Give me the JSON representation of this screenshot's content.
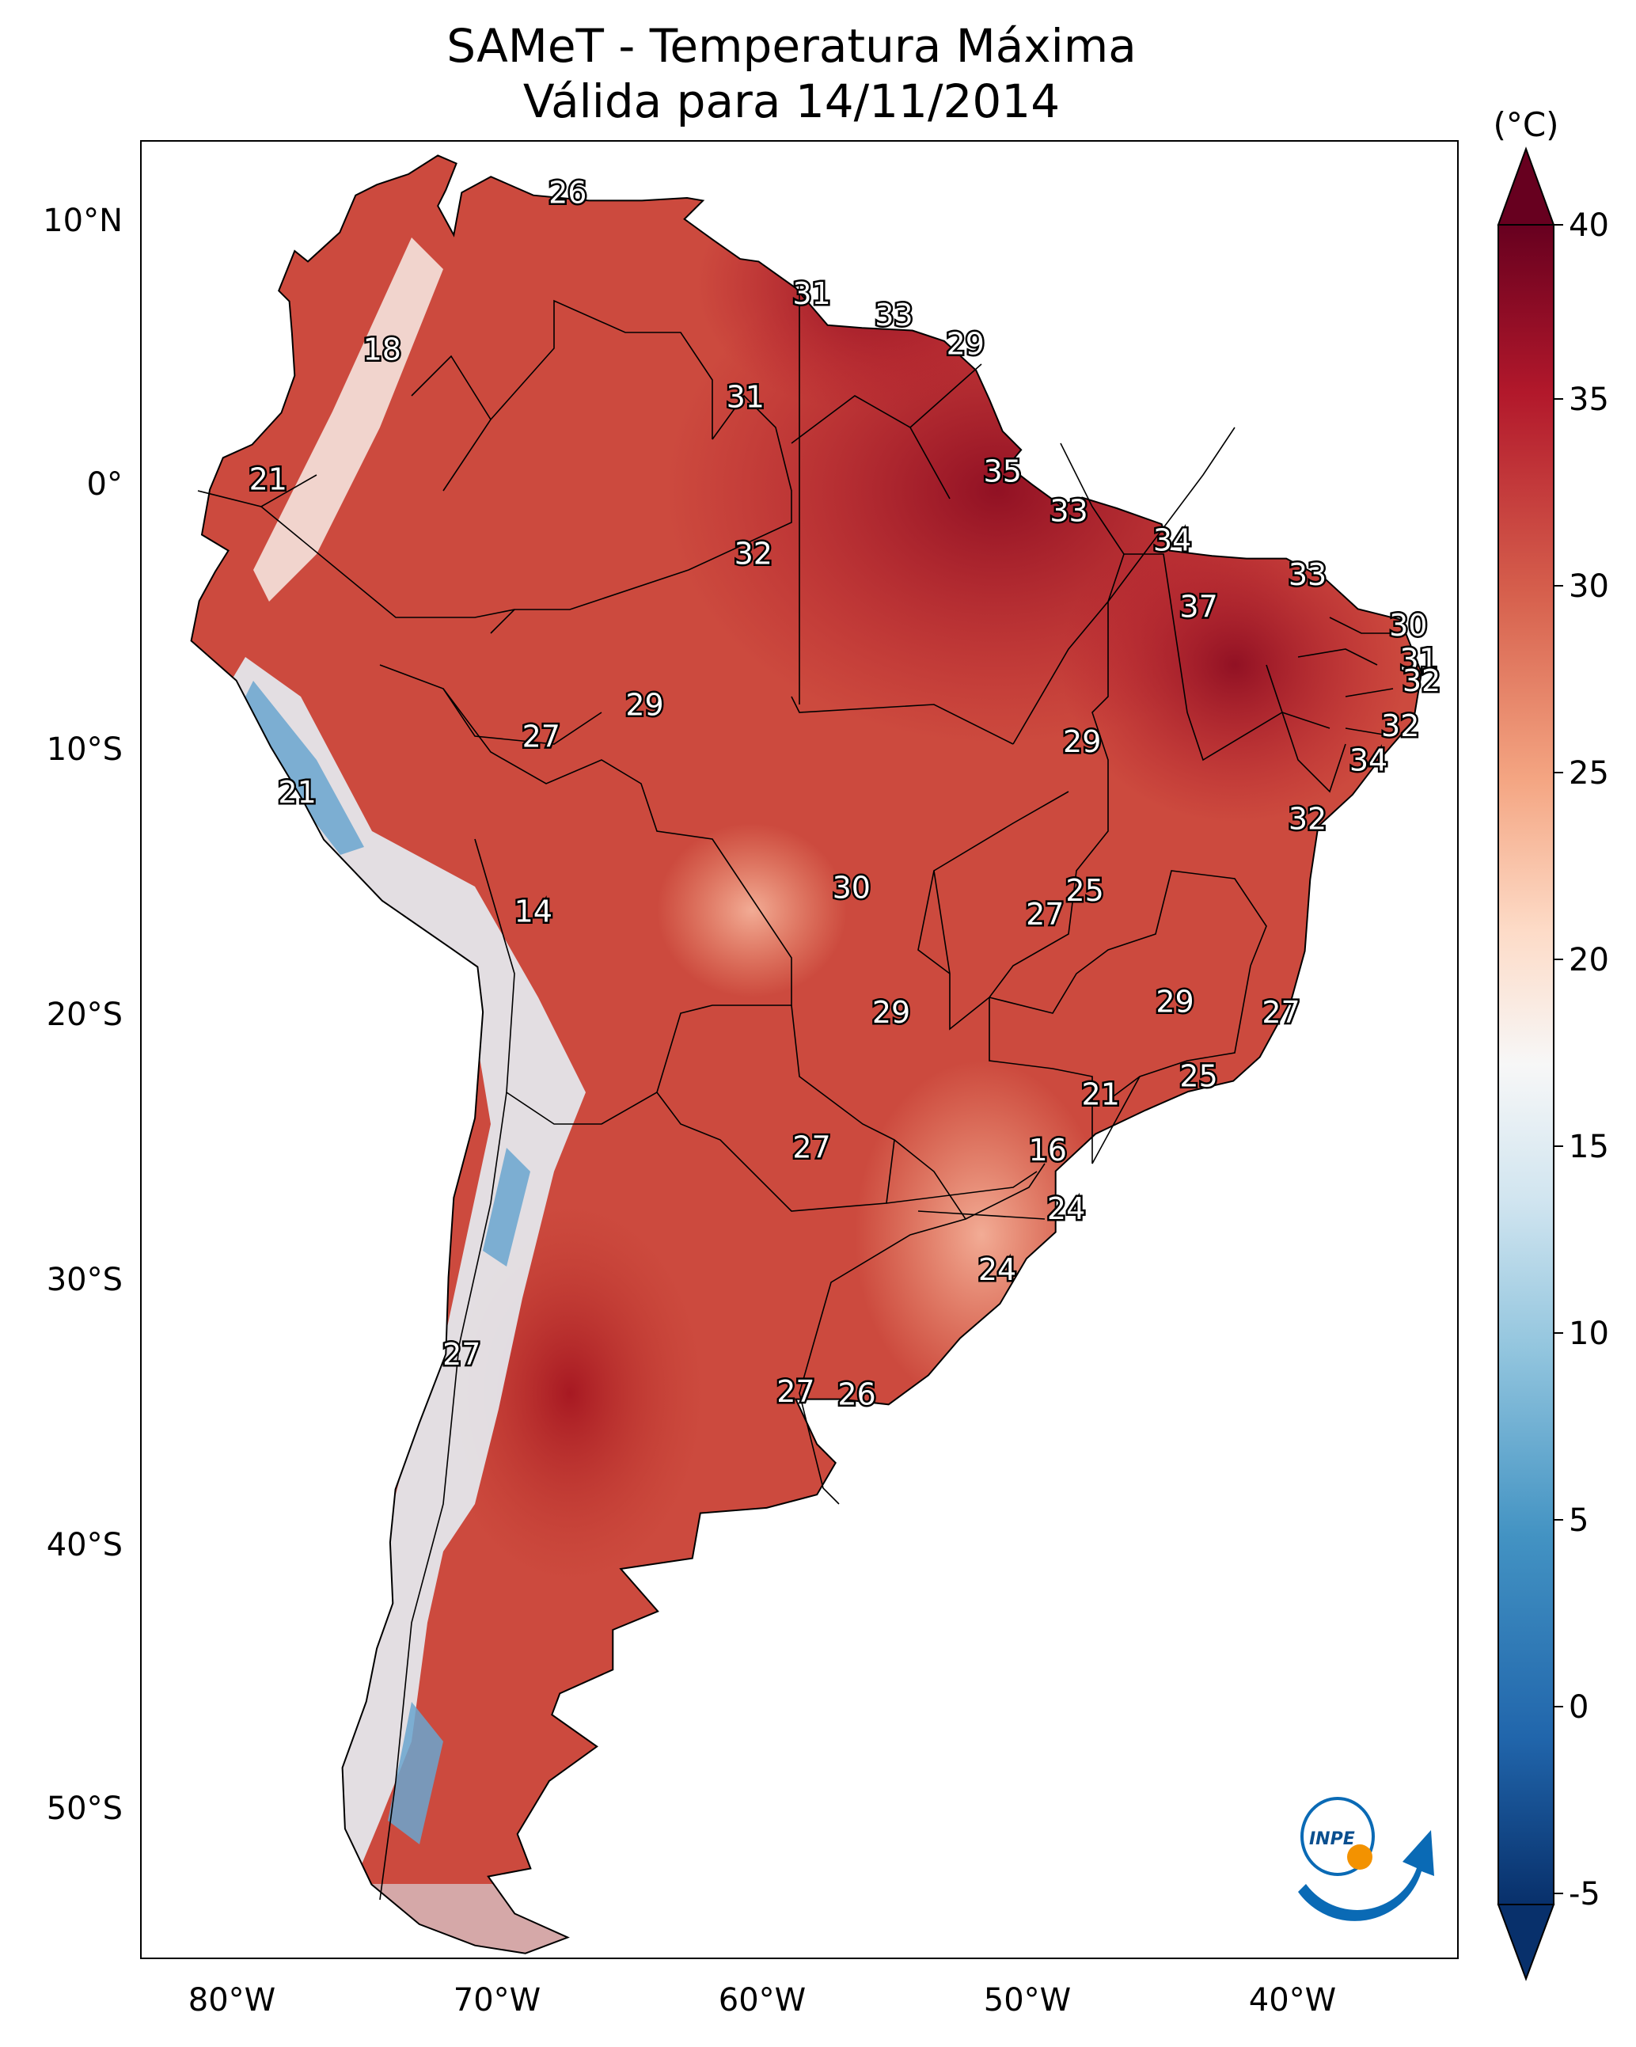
{
  "title": "SAMeT - Temperatura Máxima",
  "subtitle": "Válida para 14/11/2014",
  "colorbar": {
    "unit": "(°C)",
    "ticks": [
      "40",
      "35",
      "30",
      "25",
      "20",
      "15",
      "10",
      "5",
      "0",
      "-5"
    ],
    "range": [
      -5,
      40
    ],
    "extend": "both",
    "colormap": "RdBu_r",
    "colors": [
      "#08306b",
      "#2166ac",
      "#4393c3",
      "#92c5de",
      "#d1e5f0",
      "#f7f7f7",
      "#fddbc7",
      "#f4a582",
      "#d6604d",
      "#b2182b",
      "#67001f"
    ]
  },
  "axes": {
    "lat_labels": [
      "10°N",
      "0°",
      "10°S",
      "20°S",
      "30°S",
      "40°S",
      "50°S"
    ],
    "lon_labels": [
      "80°W",
      "70°W",
      "60°W",
      "50°W",
      "40°W"
    ]
  },
  "map_labels": [
    {
      "value": "26",
      "lon": -67,
      "lat": 10.5
    },
    {
      "value": "31",
      "lon": -57.8,
      "lat": 6.7
    },
    {
      "value": "33",
      "lon": -54.7,
      "lat": 5.9
    },
    {
      "value": "29",
      "lon": -52,
      "lat": 4.8
    },
    {
      "value": "18",
      "lon": -74.0,
      "lat": 4.6
    },
    {
      "value": "31",
      "lon": -60.3,
      "lat": 2.8
    },
    {
      "value": "35",
      "lon": -50.6,
      "lat": 0.0
    },
    {
      "value": "21",
      "lon": -78.3,
      "lat": -0.3
    },
    {
      "value": "33",
      "lon": -48.1,
      "lat": -1.5
    },
    {
      "value": "34",
      "lon": -44.2,
      "lat": -2.6
    },
    {
      "value": "32",
      "lon": -60.0,
      "lat": -3.1
    },
    {
      "value": "33",
      "lon": -39.1,
      "lat": -3.9
    },
    {
      "value": "37",
      "lon": -43.2,
      "lat": -5.1
    },
    {
      "value": "30",
      "lon": -35.3,
      "lat": -5.8
    },
    {
      "value": "31",
      "lon": -34.9,
      "lat": -7.1
    },
    {
      "value": "32",
      "lon": -34.8,
      "lat": -7.9
    },
    {
      "value": "29",
      "lon": -64.1,
      "lat": -8.8
    },
    {
      "value": "27",
      "lon": -68.0,
      "lat": -10.0
    },
    {
      "value": "32",
      "lon": -35.6,
      "lat": -9.6
    },
    {
      "value": "29",
      "lon": -47.6,
      "lat": -10.2
    },
    {
      "value": "34",
      "lon": -36.8,
      "lat": -10.9
    },
    {
      "value": "21",
      "lon": -77.2,
      "lat": -12.1
    },
    {
      "value": "32",
      "lon": -39.1,
      "lat": -13.1
    },
    {
      "value": "25",
      "lon": -47.5,
      "lat": -15.8
    },
    {
      "value": "30",
      "lon": -56.3,
      "lat": -15.7
    },
    {
      "value": "27",
      "lon": -49.0,
      "lat": -16.7
    },
    {
      "value": "14",
      "lon": -68.3,
      "lat": -16.6
    },
    {
      "value": "29",
      "lon": -44.1,
      "lat": -20.0
    },
    {
      "value": "27",
      "lon": -40.1,
      "lat": -20.4
    },
    {
      "value": "29",
      "lon": -54.8,
      "lat": -20.4
    },
    {
      "value": "25",
      "lon": -43.2,
      "lat": -22.8
    },
    {
      "value": "21",
      "lon": -46.9,
      "lat": -23.5
    },
    {
      "value": "27",
      "lon": -57.8,
      "lat": -25.5
    },
    {
      "value": "16",
      "lon": -48.9,
      "lat": -25.6
    },
    {
      "value": "24",
      "lon": -48.2,
      "lat": -27.8
    },
    {
      "value": "24",
      "lon": -50.8,
      "lat": -30.1
    },
    {
      "value": "27",
      "lon": -71.0,
      "lat": -33.3
    },
    {
      "value": "27",
      "lon": -58.4,
      "lat": -34.7
    },
    {
      "value": "26",
      "lon": -56.1,
      "lat": -34.8
    }
  ],
  "logo": {
    "text": "INPE"
  }
}
